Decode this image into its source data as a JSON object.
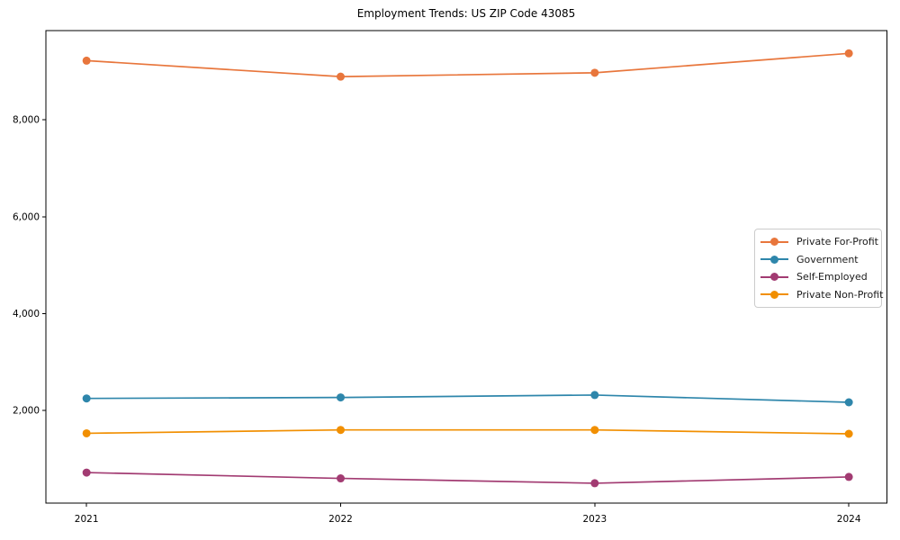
{
  "figure": {
    "title": "Employment Trends: US ZIP Code 43085"
  },
  "chart_data": {
    "type": "line",
    "title": "Employment Trends: US ZIP Code 43085",
    "xlabel": "",
    "ylabel": "",
    "x": [
      2021,
      2022,
      2023,
      2024
    ],
    "x_tick_labels": [
      "2021",
      "2022",
      "2023",
      "2024"
    ],
    "y_ticks": [
      2000,
      4000,
      6000,
      8000
    ],
    "y_tick_labels": [
      "2,000",
      "4,000",
      "6,000",
      "8,000"
    ],
    "xlim": [
      2020.84,
      2024.15
    ],
    "ylim": [
      90,
      9840
    ],
    "grid": false,
    "legend_position": "center right",
    "marker": "circle",
    "series": [
      {
        "name": "Private For-Profit",
        "color": "#E8763C",
        "values": [
          9220,
          8890,
          8970,
          9370
        ]
      },
      {
        "name": "Government",
        "color": "#2E86AB",
        "values": [
          2250,
          2270,
          2320,
          2170
        ]
      },
      {
        "name": "Self-Employed",
        "color": "#A23B72",
        "values": [
          720,
          600,
          500,
          630
        ]
      },
      {
        "name": "Private Non-Profit",
        "color": "#F18F01",
        "values": [
          1530,
          1600,
          1600,
          1520
        ]
      }
    ]
  }
}
